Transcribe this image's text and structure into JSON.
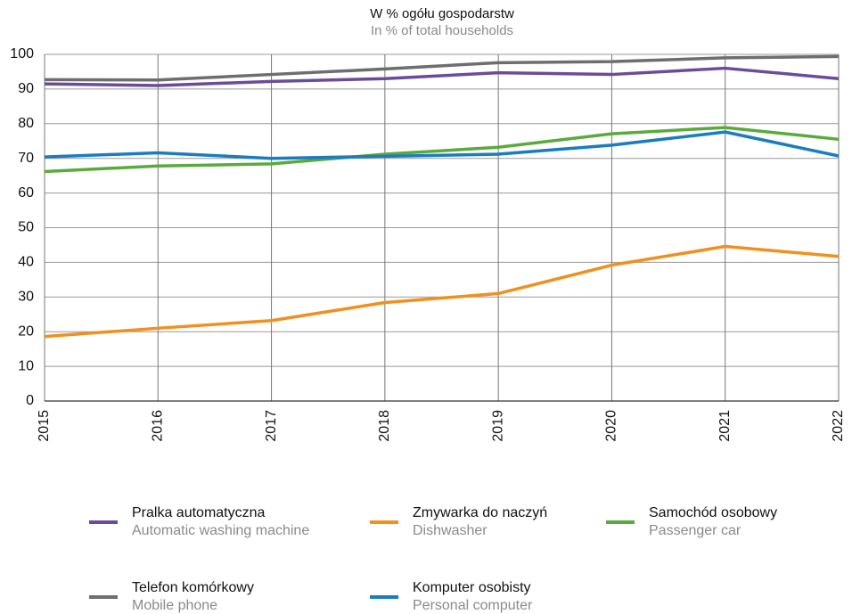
{
  "chart_data": {
    "type": "line",
    "title": "W % ogółu gospodarstw",
    "subtitle": "In % of total households",
    "categories": [
      "2015",
      "2016",
      "2017",
      "2018",
      "2019",
      "2020",
      "2021",
      "2022"
    ],
    "series": [
      {
        "name": "Pralka automatyczna",
        "subname": "Automatic washing machine",
        "color": "#6b4c9a",
        "values": [
          91.5,
          91.0,
          92.2,
          93.0,
          94.7,
          94.2,
          96.0,
          93.0
        ]
      },
      {
        "name": "Zmywarka do naczyń",
        "subname": "Dishwasher",
        "color": "#f0901e",
        "values": [
          18.6,
          21.0,
          23.2,
          28.4,
          31.0,
          39.2,
          44.6,
          41.7
        ]
      },
      {
        "name": "Samochód osobowy",
        "subname": "Passenger car",
        "color": "#5aaa3c",
        "values": [
          66.2,
          67.8,
          68.4,
          71.2,
          73.2,
          77.1,
          78.9,
          75.5
        ]
      },
      {
        "name": "Telefon komórkowy",
        "subname": "Mobile phone",
        "color": "#6e6e6e",
        "values": [
          92.7,
          92.6,
          94.2,
          95.8,
          97.6,
          97.9,
          99.0,
          99.4
        ]
      },
      {
        "name": "Komputer osobisty",
        "subname": "Personal computer",
        "color": "#1a7cc1",
        "values": [
          70.4,
          71.6,
          70.0,
          70.6,
          71.2,
          73.8,
          77.6,
          70.7
        ]
      }
    ],
    "ylim": [
      0,
      100
    ],
    "yticks": [
      0,
      10,
      20,
      30,
      40,
      50,
      60,
      70,
      80,
      90,
      100
    ],
    "grid": true
  }
}
